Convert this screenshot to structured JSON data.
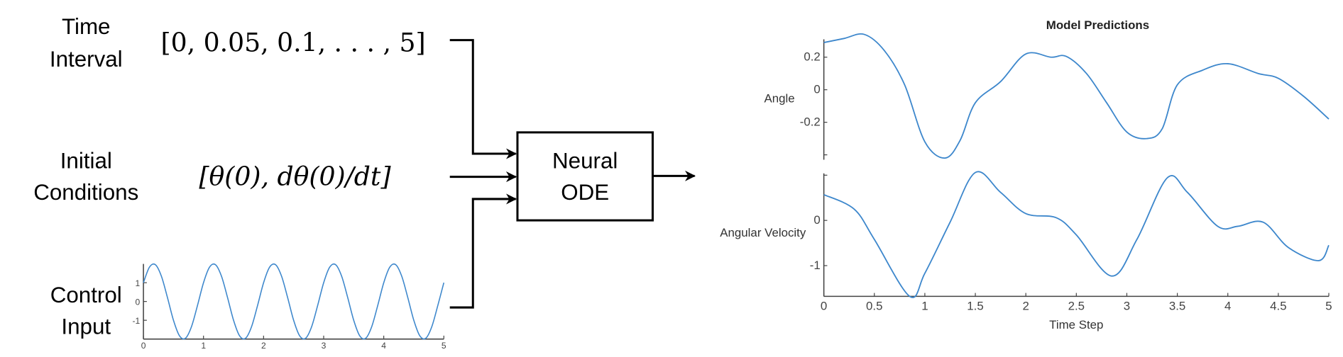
{
  "inputs": {
    "time_interval": {
      "label_line1": "Time",
      "label_line2": "Interval",
      "value": "[0, 0.05, 0.1, . . . , 5]"
    },
    "initial_conditions": {
      "label_line1": "Initial",
      "label_line2": "Conditions",
      "value": "[θ(0), dθ(0)/dt]"
    },
    "control_input": {
      "label_line1": "Control",
      "label_line2": "Input"
    }
  },
  "model_box": {
    "line1": "Neural",
    "line2": "ODE"
  },
  "colors": {
    "line": "#3d87cc",
    "axis": "#444444",
    "arrow": "#000000"
  },
  "chart_data": [
    {
      "type": "line",
      "name": "control-input",
      "x_start": 0,
      "x_step": 0.1,
      "values": [
        1.0,
        1.827,
        1.956,
        1.338,
        0.209,
        -1.0,
        -1.827,
        -1.956,
        -1.338,
        -0.209,
        1.0,
        1.827,
        1.956,
        1.338,
        0.209,
        -1.0,
        -1.827,
        -1.956,
        -1.338,
        -0.209,
        1.0,
        1.827,
        1.956,
        1.338,
        0.209,
        -1.0,
        -1.827,
        -1.956,
        -1.338,
        -0.209,
        1.0,
        1.827,
        1.956,
        1.338,
        0.209,
        -1.0,
        -1.827,
        -1.956,
        -1.338,
        -0.209,
        1.0,
        1.827,
        1.956,
        1.338,
        0.209,
        -1.0,
        -1.827,
        -1.956,
        -1.338,
        -0.209,
        1.0
      ],
      "xlim": [
        0,
        5
      ],
      "ylim": [
        -2,
        2
      ],
      "xticks": [
        "0",
        "1",
        "2",
        "3",
        "4",
        "5"
      ],
      "yticks": [
        "1",
        "0",
        "-1"
      ]
    },
    {
      "type": "line",
      "title": "Model Predictions",
      "ylabel": "Angle",
      "x": [
        0,
        0.2,
        0.4,
        0.6,
        0.8,
        1.0,
        1.2,
        1.35,
        1.5,
        1.75,
        2.0,
        2.25,
        2.4,
        2.6,
        2.8,
        3.0,
        3.2,
        3.35,
        3.5,
        3.75,
        4.0,
        4.3,
        4.5,
        4.75,
        5.0
      ],
      "y": [
        0.29,
        0.315,
        0.34,
        0.24,
        0.03,
        -0.32,
        -0.42,
        -0.31,
        -0.08,
        0.05,
        0.22,
        0.2,
        0.205,
        0.1,
        -0.08,
        -0.26,
        -0.3,
        -0.24,
        0.03,
        0.12,
        0.16,
        0.1,
        0.07,
        -0.04,
        -0.18
      ],
      "xlim": [
        0,
        5
      ],
      "ylim": [
        -0.43,
        0.31
      ],
      "yticks": [
        "0.2",
        "0",
        "-0.2"
      ]
    },
    {
      "type": "line",
      "ylabel": "Angular Velocity",
      "xlabel": "Time Step",
      "x": [
        0,
        0.3,
        0.5,
        0.85,
        1.0,
        1.25,
        1.5,
        1.75,
        2.0,
        2.3,
        2.5,
        2.85,
        3.1,
        3.4,
        3.6,
        3.9,
        4.1,
        4.35,
        4.6,
        4.9,
        5.0
      ],
      "y": [
        0.57,
        0.25,
        -0.42,
        -1.68,
        -1.17,
        -0.04,
        1.06,
        0.62,
        0.15,
        0.06,
        -0.32,
        -1.23,
        -0.42,
        0.94,
        0.62,
        -0.13,
        -0.13,
        -0.04,
        -0.6,
        -0.89,
        -0.55
      ],
      "xlim": [
        0,
        5
      ],
      "ylim": [
        -1.68,
        1.04
      ],
      "xticks": [
        "0",
        "0.5",
        "1",
        "1.5",
        "2",
        "2.5",
        "3",
        "3.5",
        "4",
        "4.5",
        "5"
      ],
      "yticks": [
        "0",
        "-1"
      ]
    }
  ]
}
